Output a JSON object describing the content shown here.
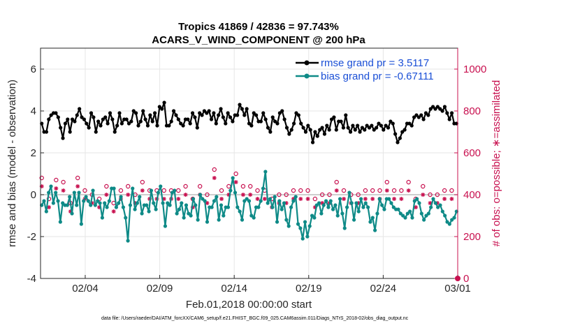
{
  "chart_data": {
    "type": "line",
    "title_line1": "Tropics 41869 / 42836 = 97.743%",
    "title_line2": "ACARS_V_WIND_COMPONENT @ 200 hPa",
    "xlabel": "Feb.01,2018 00:00:00 start",
    "ylabel": "rmse and bias (model - observation)",
    "ylabel_right": "# of obs: o=possible; ∗=assimilated",
    "x_range_days": [
      0,
      28
    ],
    "ylim": [
      -4,
      7
    ],
    "ylim_right": [
      0,
      1100
    ],
    "x_ticks": [
      {
        "day": 3,
        "label": "02/04"
      },
      {
        "day": 8,
        "label": "02/09"
      },
      {
        "day": 13,
        "label": "02/14"
      },
      {
        "day": 18,
        "label": "02/19"
      },
      {
        "day": 23,
        "label": "02/24"
      },
      {
        "day": 28,
        "label": "03/01"
      }
    ],
    "y_ticks": [
      -4,
      -2,
      0,
      2,
      4,
      6
    ],
    "y_ticks_right": [
      0,
      200,
      400,
      600,
      800,
      1000
    ],
    "legend": [
      {
        "label": "rmse grand pr = 3.5117",
        "color": "#000000"
      },
      {
        "label": "bias grand pr = -0.67111",
        "color": "#0e8a87"
      }
    ],
    "series": [
      {
        "name": "rmse",
        "color": "#000000",
        "values": [
          3.4,
          3.0,
          3.0,
          3.6,
          3.8,
          3.9,
          3.9,
          3.7,
          3.2,
          2.7,
          3.4,
          3.6,
          3.0,
          3.6,
          3.5,
          3.8,
          4.1,
          3.7,
          3.6,
          3.4,
          3.2,
          3.9,
          3.7,
          3.0,
          3.5,
          3.3,
          3.6,
          3.7,
          3.4,
          3.9,
          3.6,
          3.0,
          3.3,
          3.9,
          3.4,
          3.6,
          3.6,
          3.4,
          3.5,
          4.0,
          3.9,
          3.3,
          3.5,
          4.0,
          3.6,
          3.3,
          3.8,
          3.5,
          3.9,
          3.3,
          4.2,
          4.1,
          4.4,
          3.3,
          3.3,
          3.5,
          4.0,
          3.8,
          3.6,
          3.4,
          3.3,
          3.6,
          3.6,
          3.4,
          3.9,
          3.7,
          3.2,
          3.9,
          3.8,
          4.0,
          3.9,
          4.0,
          3.6,
          3.9,
          3.4,
          3.8,
          4.1,
          3.7,
          3.4,
          3.9,
          3.7,
          3.5,
          3.8,
          3.8,
          4.3,
          4.1,
          3.8,
          4.1,
          3.4,
          3.3,
          3.9,
          3.8,
          3.5,
          3.5,
          3.9,
          3.6,
          3.2,
          3.0,
          3.7,
          3.5,
          3.4,
          3.9,
          4.0,
          3.6,
          3.2,
          2.9,
          3.1,
          3.4,
          3.9,
          3.8,
          3.4,
          3.2,
          3.0,
          3.3,
          3.1,
          2.5,
          3.0,
          2.8,
          3.1,
          3.2,
          2.9,
          3.3,
          3.1,
          3.6,
          3.7,
          3.1,
          3.5,
          3.5,
          3.2,
          3.8,
          3.2,
          3.0,
          3.3,
          3.1,
          3.3,
          3.0,
          3.2,
          3.1,
          3.3,
          3.2,
          3.3,
          3.1,
          3.2,
          3.4,
          3.3,
          3.1,
          3.3,
          3.2,
          3.5,
          3.4,
          2.9,
          2.5,
          2.7,
          3.0,
          3.1,
          3.4,
          3.4,
          3.3,
          3.7,
          3.8,
          3.7,
          3.8,
          3.6,
          3.9,
          3.8,
          4.1,
          4.2,
          4.1,
          4.2,
          4.1,
          4.0,
          4.2,
          3.9,
          3.6,
          3.9,
          3.4,
          3.4
        ]
      },
      {
        "name": "bias",
        "color": "#0e8a87",
        "values": [
          -0.5,
          -0.3,
          -0.8,
          0.1,
          0.4,
          -0.4,
          0.1,
          -0.3,
          -1.3,
          -0.4,
          -0.5,
          -0.5,
          -0.1,
          -0.9,
          0.1,
          -0.5,
          0.1,
          -1.4,
          -0.3,
          -0.1,
          -0.3,
          -0.5,
          0.2,
          -0.5,
          -0.3,
          -0.4,
          -1.1,
          -0.4,
          -0.6,
          -0.3,
          0.3,
          0.3,
          -0.6,
          -0.4,
          -0.1,
          -0.6,
          -1.1,
          -2.2,
          -0.5,
          0.3,
          -0.7,
          -0.4,
          -0.1,
          -0.9,
          -0.5,
          -0.5,
          -0.8,
          0.2,
          -0.4,
          -0.7,
          0.1,
          0.4,
          -0.4,
          -1.5,
          -0.4,
          -0.5,
          0.1,
          0.2,
          -0.9,
          -0.7,
          -0.4,
          -1.1,
          -0.5,
          -0.9,
          -1.0,
          -0.2,
          -0.5,
          -1.2,
          0.0,
          -0.2,
          -0.3,
          -1.3,
          -0.6,
          -0.6,
          -0.3,
          -0.1,
          -1.2,
          -0.5,
          -1.0,
          -0.6,
          -0.6,
          0.2,
          0.8,
          0.1,
          -0.6,
          -0.8,
          -1.2,
          -0.3,
          -0.2,
          -0.3,
          -1.0,
          -1.1,
          -0.6,
          -0.6,
          -0.3,
          0.3,
          1.1,
          -0.4,
          -0.2,
          -0.6,
          -0.1,
          -1.3,
          -0.3,
          -0.7,
          -0.4,
          -1.2,
          -1.5,
          -0.6,
          -0.3,
          -0.1,
          -1.4,
          -1.6,
          -2.1,
          -1.3,
          -2.0,
          -1.5,
          -1.0,
          -1.1,
          -0.5,
          -0.4,
          -0.9,
          -0.5,
          -0.3,
          -0.6,
          -0.3,
          -0.7,
          -0.5,
          -1.0,
          -0.2,
          -0.9,
          -1.6,
          -0.6,
          0.1,
          -0.4,
          -1.2,
          -0.4,
          -0.8,
          -0.2,
          -0.6,
          -0.4,
          -0.6,
          -1.3,
          -1.1,
          -1.7,
          -0.9,
          -0.2,
          -0.5,
          -0.7,
          -0.2,
          -0.2,
          -0.4,
          -0.6,
          -0.7,
          -0.7,
          -0.9,
          -1.0,
          -1.1,
          -0.9,
          -0.8,
          -1.1,
          -0.3,
          -0.2,
          -0.4,
          -0.9,
          -1.2,
          -1.0,
          -0.9,
          -0.6,
          -0.2,
          -0.4,
          -0.6,
          -0.5,
          -0.8,
          -1.0,
          -1.3,
          -1.4,
          -1.2,
          -1.1,
          -0.8
        ]
      },
      {
        "name": "obs_possible",
        "color": "#c8104f",
        "axis": "right",
        "values": [
          480,
          520,
          400,
          380,
          420,
          440,
          470,
          380,
          390,
          460,
          440,
          380,
          360,
          400,
          440,
          480,
          460,
          420,
          420,
          480,
          460,
          400,
          380,
          440,
          380,
          420,
          400,
          440,
          480,
          420,
          360,
          380,
          400,
          420,
          400,
          460,
          440,
          360,
          380,
          400,
          420,
          380,
          460,
          400,
          380,
          420,
          400,
          440,
          420,
          500,
          480,
          420,
          400,
          380,
          420,
          400,
          440,
          420,
          380,
          400,
          440,
          420,
          400,
          380,
          420,
          460,
          440,
          400,
          420,
          400,
          440,
          460,
          520,
          480,
          440,
          420,
          400,
          380,
          440,
          420,
          460,
          500,
          420,
          400,
          440,
          420,
          460,
          440,
          380,
          400,
          420,
          440,
          460,
          420,
          400,
          360,
          380,
          420,
          440,
          400,
          420,
          460,
          400,
          380,
          440,
          420,
          400,
          380,
          420,
          400,
          440,
          420,
          460,
          400,
          380,
          360,
          420,
          400,
          440,
          420,
          400,
          380,
          420,
          460,
          440,
          400,
          420,
          380,
          420,
          400,
          440,
          420,
          400,
          460,
          440,
          420,
          400,
          380,
          420,
          400,
          440,
          420,
          380,
          420,
          460,
          400,
          440,
          420,
          400,
          380,
          420,
          400,
          440,
          460,
          420,
          400,
          380,
          420,
          400,
          440,
          460,
          420,
          400,
          380,
          420,
          400,
          440,
          460,
          420,
          400,
          380,
          420,
          400,
          380
        ]
      },
      {
        "name": "obs_assimilated",
        "color": "#c8104f",
        "axis": "right",
        "values": [
          460,
          500,
          380,
          360,
          400,
          420,
          450,
          360,
          370,
          440,
          420,
          360,
          340,
          380,
          420,
          460,
          440,
          400,
          400,
          460,
          440,
          380,
          360,
          420,
          360,
          400,
          380,
          420,
          460,
          400,
          340,
          360,
          380,
          400,
          380,
          440,
          420,
          340,
          360,
          380,
          400,
          360,
          440,
          380,
          360,
          400,
          380,
          420,
          400,
          480,
          460,
          400,
          380,
          360,
          400,
          380,
          420,
          400,
          360,
          380,
          420,
          400,
          380,
          360,
          400,
          440,
          420,
          380,
          400,
          380,
          420,
          440,
          500,
          460,
          420,
          400,
          380,
          360,
          420,
          400,
          440,
          480,
          400,
          380,
          420,
          400,
          440,
          420,
          360,
          380,
          400,
          420,
          440,
          400,
          380,
          340,
          360,
          400,
          420,
          380,
          400,
          440,
          380,
          360,
          420,
          400,
          380,
          360,
          400,
          380,
          420,
          400,
          440,
          380,
          360,
          340,
          400,
          380,
          420,
          400,
          380,
          360,
          400,
          440,
          420,
          380,
          400,
          360,
          400,
          380,
          420,
          400,
          380,
          440,
          420,
          400,
          380,
          360,
          400,
          380,
          420,
          400,
          360,
          400,
          440,
          380,
          420,
          400,
          380,
          360,
          400,
          380,
          420,
          440,
          400,
          380,
          360,
          400,
          380,
          420,
          440,
          400,
          380,
          360,
          400,
          380,
          420,
          440,
          400,
          380,
          360,
          400,
          380,
          360
        ]
      }
    ]
  },
  "footer": "data file: /Users/raeder/DAI/ATM_forcXX/CAM6_setup/f.e21.FHIST_BGC.f09_025.CAM6assim.011/Diags_NTrS_2018-02/obs_diag_output.nc"
}
